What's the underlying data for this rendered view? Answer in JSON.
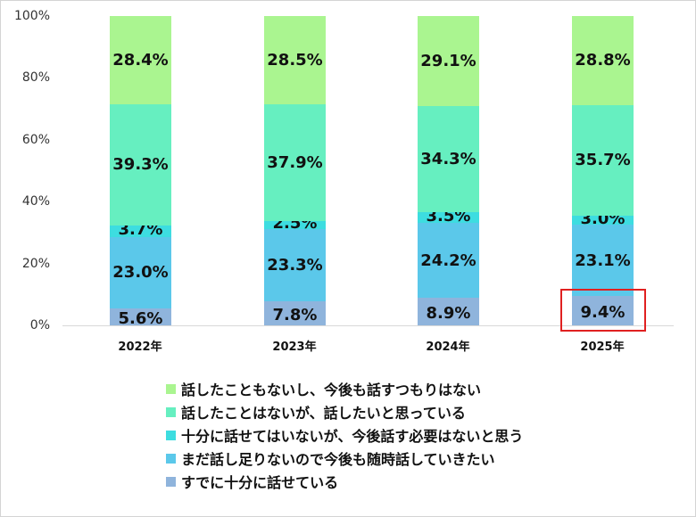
{
  "chart_data": {
    "type": "bar",
    "stacked": true,
    "title": "",
    "xlabel": "",
    "ylabel": "",
    "ylim": [
      0,
      100
    ],
    "yticks": [
      "0%",
      "20%",
      "40%",
      "60%",
      "80%",
      "100%"
    ],
    "categories": [
      "2022年",
      "2023年",
      "2024年",
      "2025年"
    ],
    "series": [
      {
        "name": "すでに十分に話せている",
        "color": "#8fb4dc",
        "values": [
          5.6,
          7.8,
          8.9,
          9.4
        ],
        "labels": [
          "5.6%",
          "7.8%",
          "8.9%",
          "9.4%"
        ]
      },
      {
        "name": "まだ話し足りないので今後も随時話していきたい",
        "color": "#5bc8ea",
        "values": [
          23.0,
          23.3,
          24.2,
          23.1
        ],
        "labels": [
          "23.0%",
          "23.3%",
          "24.2%",
          "23.1%"
        ]
      },
      {
        "name": "十分に話せてはいないが、今後話す必要はないと思う",
        "color": "#3ddde0",
        "values": [
          3.7,
          2.5,
          3.5,
          3.0
        ],
        "labels": [
          "3.7%",
          "2.5%",
          "3.5%",
          "3.0%"
        ]
      },
      {
        "name": "話したことはないが、話したいと思っている",
        "color": "#66efc0",
        "values": [
          39.3,
          37.9,
          34.3,
          35.7
        ],
        "labels": [
          "39.3%",
          "37.9%",
          "34.3%",
          "35.7%"
        ]
      },
      {
        "name": "話したこともないし、今後も話すつもりはない",
        "color": "#aaf590",
        "values": [
          28.4,
          28.5,
          29.1,
          28.8
        ],
        "labels": [
          "28.4%",
          "28.5%",
          "29.1%",
          "28.8%"
        ]
      }
    ],
    "legend_position": "bottom",
    "grid": false,
    "annotations": [
      {
        "type": "highlight-box",
        "target": "2025年 すでに十分に話せている 9.4%",
        "color": "#e02020"
      }
    ]
  },
  "legend": [
    {
      "label": "話したこともないし、今後も話すつもりはない",
      "color": "#aaf590"
    },
    {
      "label": "話したことはないが、話したいと思っている",
      "color": "#66efc0"
    },
    {
      "label": "十分に話せてはいないが、今後話す必要はないと思う",
      "color": "#3ddde0"
    },
    {
      "label": "まだ話し足りないので今後も随時話していきたい",
      "color": "#5bc8ea"
    },
    {
      "label": "すでに十分に話せている",
      "color": "#8fb4dc"
    }
  ]
}
